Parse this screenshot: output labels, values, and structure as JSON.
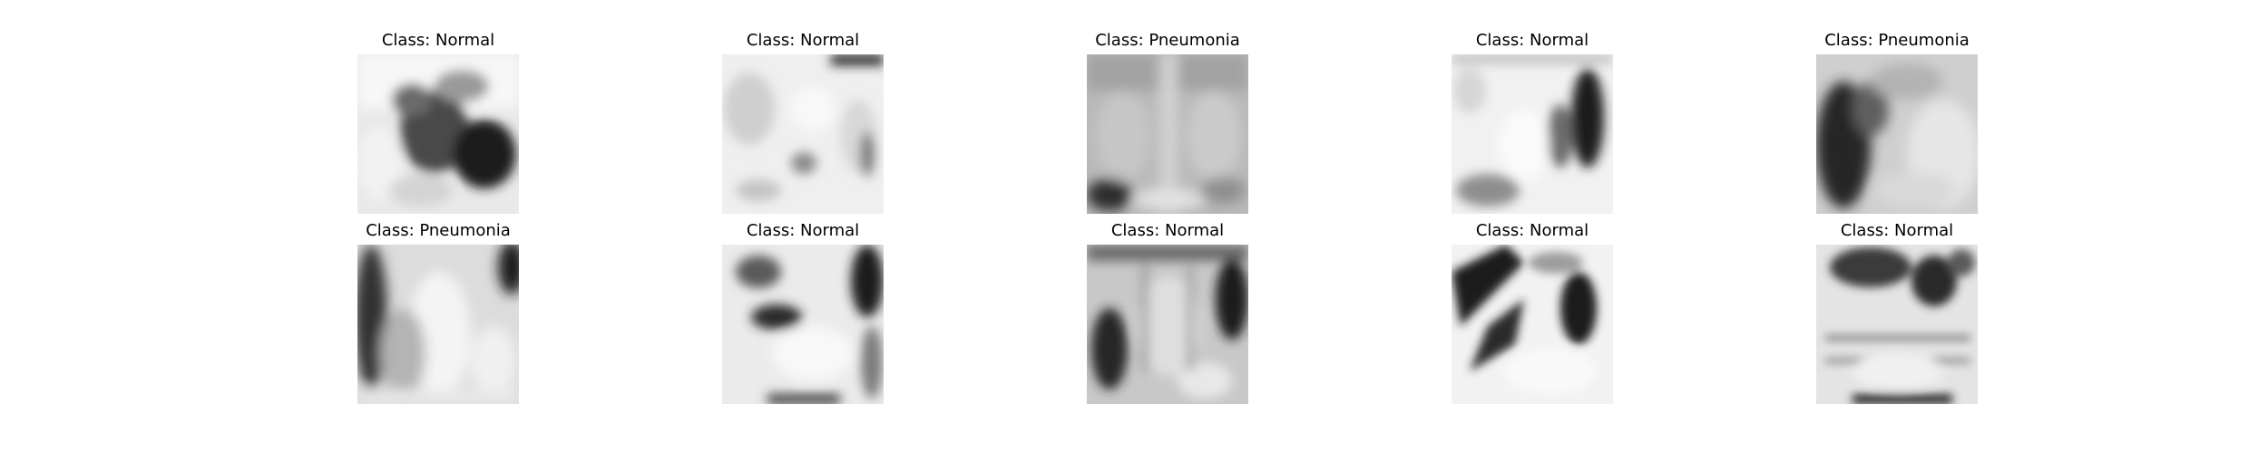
{
  "panels": [
    {
      "title": "Class: Normal"
    },
    {
      "title": "Class: Normal"
    },
    {
      "title": "Class: Pneumonia"
    },
    {
      "title": "Class: Normal"
    },
    {
      "title": "Class: Pneumonia"
    },
    {
      "title": "Class: Pneumonia"
    },
    {
      "title": "Class: Normal"
    },
    {
      "title": "Class: Normal"
    },
    {
      "title": "Class: Normal"
    },
    {
      "title": "Class: Normal"
    }
  ]
}
